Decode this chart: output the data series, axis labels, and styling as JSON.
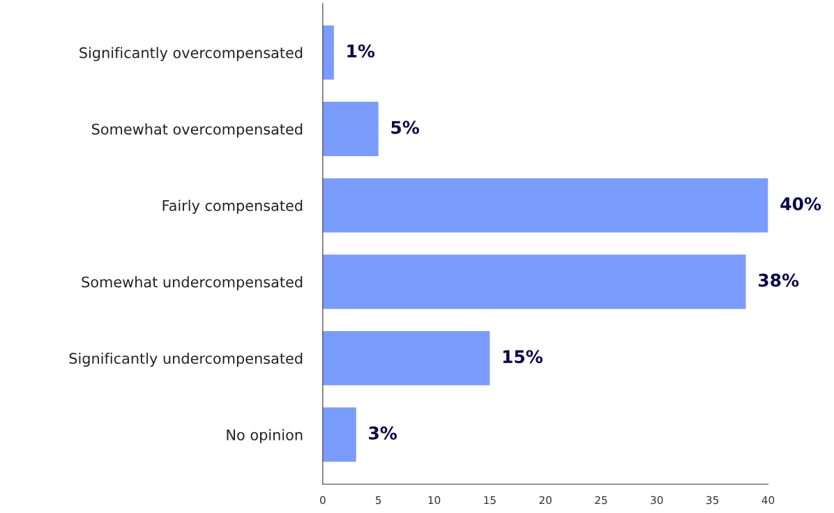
{
  "chart_data": {
    "type": "bar",
    "orientation": "horizontal",
    "categories": [
      "Significantly overcompensated",
      "Somewhat overcompensated",
      "Fairly compensated",
      "Somewhat undercompensated",
      "Significantly undercompensated",
      "No opinion"
    ],
    "values": [
      1,
      5,
      40,
      38,
      15,
      3
    ],
    "value_labels": [
      "1%",
      "5%",
      "40%",
      "38%",
      "15%",
      "3%"
    ],
    "color": "#7b9cff",
    "xlim": [
      0,
      40
    ],
    "xticks": [
      0,
      5,
      10,
      15,
      20,
      25,
      30,
      35,
      40
    ],
    "grid": false,
    "legend": false
  }
}
